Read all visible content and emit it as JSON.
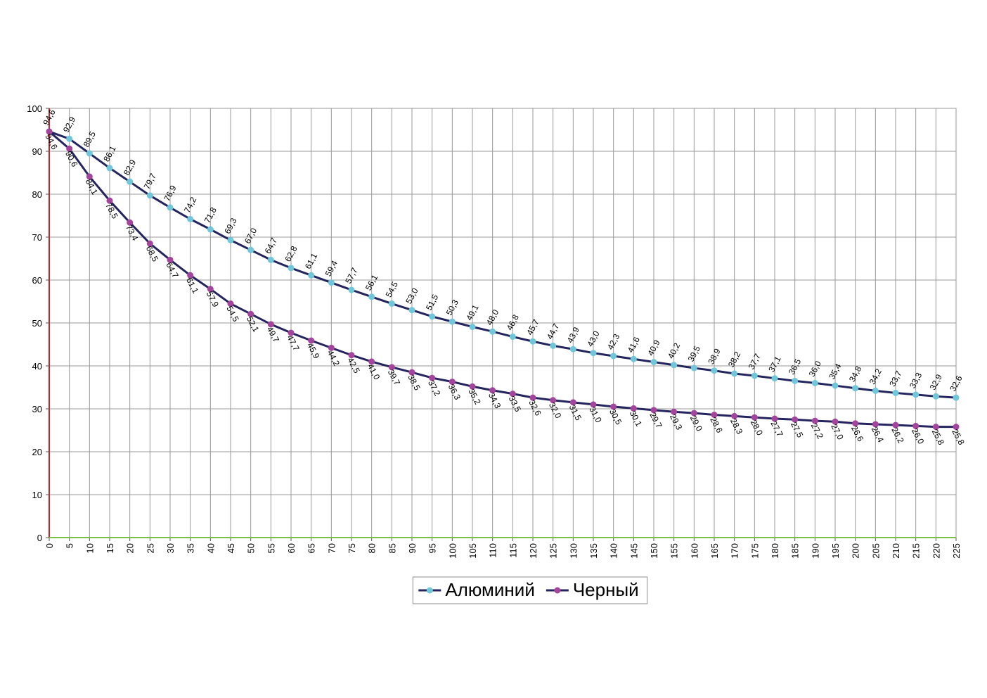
{
  "chart_data": {
    "type": "line",
    "x": [
      0,
      5,
      10,
      15,
      20,
      25,
      30,
      35,
      40,
      45,
      50,
      55,
      60,
      65,
      70,
      75,
      80,
      85,
      90,
      95,
      100,
      105,
      110,
      115,
      120,
      125,
      130,
      135,
      140,
      145,
      150,
      155,
      160,
      165,
      170,
      175,
      180,
      185,
      190,
      195,
      200,
      205,
      210,
      215,
      220,
      225
    ],
    "xlim": [
      0,
      225
    ],
    "xticks": [
      0,
      5,
      10,
      15,
      20,
      25,
      30,
      35,
      40,
      45,
      50,
      55,
      60,
      65,
      70,
      75,
      80,
      85,
      90,
      95,
      100,
      105,
      110,
      115,
      120,
      125,
      130,
      135,
      140,
      145,
      150,
      155,
      160,
      165,
      170,
      175,
      180,
      185,
      190,
      195,
      200,
      205,
      210,
      215,
      220,
      225
    ],
    "ylim": [
      0,
      100
    ],
    "yticks": [
      0,
      10,
      20,
      30,
      40,
      50,
      60,
      70,
      80,
      90,
      100
    ],
    "grid": true,
    "legend": "bottom",
    "line_color": "#24245e",
    "y_axis_color": "#c0272d",
    "x_axis_color": "#7ac143",
    "series": [
      {
        "name": "Алюминий",
        "color": "#6fc7d9",
        "label_position": "above",
        "values": [
          94.6,
          92.9,
          89.5,
          86.1,
          82.9,
          79.7,
          76.9,
          74.2,
          71.8,
          69.3,
          67.0,
          64.7,
          62.8,
          61.1,
          59.4,
          57.7,
          56.1,
          54.5,
          53.0,
          51.5,
          50.3,
          49.1,
          48.0,
          46.8,
          45.7,
          44.7,
          43.9,
          43.0,
          42.3,
          41.6,
          40.9,
          40.2,
          39.5,
          38.9,
          38.2,
          37.7,
          37.1,
          36.5,
          36.0,
          35.4,
          34.8,
          34.2,
          33.7,
          33.3,
          32.9,
          32.6
        ],
        "value_labels": [
          "94,6",
          "92,9",
          "89,5",
          "86,1",
          "82,9",
          "79,7",
          "76,9",
          "74,2",
          "71,8",
          "69,3",
          "67,0",
          "64,7",
          "62,8",
          "61,1",
          "59,4",
          "57,7",
          "56,1",
          "54,5",
          "53,0",
          "51,5",
          "50,3",
          "49,1",
          "48,0",
          "46,8",
          "45,7",
          "44,7",
          "43,9",
          "43,0",
          "42,3",
          "41,6",
          "40,9",
          "40,2",
          "39,5",
          "38,9",
          "38,2",
          "37,7",
          "37,1",
          "36,5",
          "36,0",
          "35,4",
          "34,8",
          "34,2",
          "33,7",
          "33,3",
          "32,9",
          "32,6"
        ]
      },
      {
        "name": "Черный",
        "color": "#a4449c",
        "label_position": "below",
        "values": [
          94.6,
          90.6,
          84.1,
          78.5,
          73.4,
          68.5,
          64.7,
          61.1,
          57.9,
          54.5,
          52.1,
          49.7,
          47.7,
          45.9,
          44.2,
          42.5,
          41.0,
          39.7,
          38.5,
          37.2,
          36.3,
          35.2,
          34.3,
          33.5,
          32.6,
          32.0,
          31.5,
          31.0,
          30.5,
          30.1,
          29.7,
          29.3,
          29.0,
          28.6,
          28.3,
          28.0,
          27.7,
          27.5,
          27.2,
          27.0,
          26.6,
          26.4,
          26.2,
          26.0,
          25.8,
          25.8
        ],
        "value_labels": [
          "94,6",
          "90,6",
          "84,1",
          "78,5",
          "73,4",
          "68,5",
          "64,7",
          "61,1",
          "57,9",
          "54,5",
          "52,1",
          "49,7",
          "47,7",
          "45,9",
          "44,2",
          "42,5",
          "41,0",
          "39,7",
          "38,5",
          "37,2",
          "36,3",
          "35,2",
          "34,3",
          "33,5",
          "32,6",
          "32,0",
          "31,5",
          "31,0",
          "30,5",
          "30,1",
          "29,7",
          "29,3",
          "29,0",
          "28,6",
          "28,3",
          "28,0",
          "27,7",
          "27,5",
          "27,2",
          "27,0",
          "26,6",
          "26,4",
          "26,2",
          "26,0",
          "25,8",
          "25,8"
        ]
      }
    ]
  }
}
